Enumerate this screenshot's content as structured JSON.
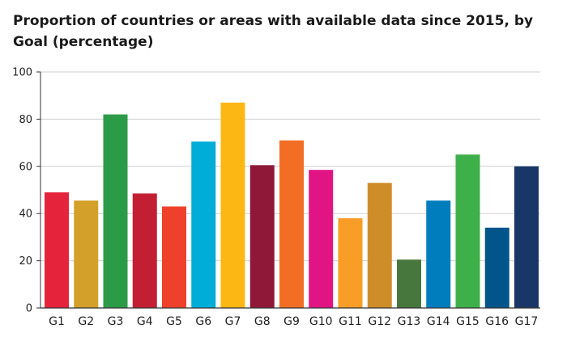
{
  "chart_data": {
    "type": "bar",
    "title": "Proportion of countries or areas with available data since 2015, by Goal (percentage)",
    "xlabel": "",
    "ylabel": "",
    "ylim": [
      0,
      100
    ],
    "yticks": [
      0,
      20,
      40,
      60,
      80,
      100
    ],
    "grid": "horizontal",
    "categories": [
      "G1",
      "G2",
      "G3",
      "G4",
      "G5",
      "G6",
      "G7",
      "G8",
      "G9",
      "G10",
      "G11",
      "G12",
      "G13",
      "G14",
      "G15",
      "G16",
      "G17"
    ],
    "values": [
      49,
      45.5,
      82,
      48.5,
      43,
      70.5,
      87,
      60.5,
      71,
      58.5,
      38,
      53,
      20.5,
      45.5,
      65,
      34,
      60
    ],
    "colors": [
      "#e5243b",
      "#d3a029",
      "#2c9b48",
      "#c31f33",
      "#ef402b",
      "#00add8",
      "#fdb714",
      "#8f1838",
      "#f36d25",
      "#e11484",
      "#f99d26",
      "#cf8d2a",
      "#48773e",
      "#007dbc",
      "#3eb049",
      "#02558b",
      "#183668"
    ]
  }
}
